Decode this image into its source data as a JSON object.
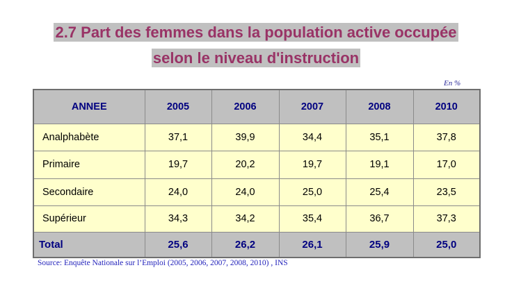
{
  "title": {
    "line1": "2.7 Part des femmes dans la population active occupée",
    "line2": "selon le niveau d'instruction"
  },
  "unit": "En %",
  "table": {
    "headers": [
      "ANNEE",
      "2005",
      "2006",
      "2007",
      "2008",
      "2010"
    ],
    "rows": [
      {
        "label": "Analphabète",
        "values": [
          "37,1",
          "39,9",
          "34,4",
          "35,1",
          "37,8"
        ]
      },
      {
        "label": "Primaire",
        "values": [
          "19,7",
          "20,2",
          "19,7",
          "19,1",
          "17,0"
        ]
      },
      {
        "label": "Secondaire",
        "values": [
          "24,0",
          "24,0",
          "25,0",
          "25,4",
          "23,5"
        ]
      },
      {
        "label": "Supérieur",
        "values": [
          "34,3",
          "34,2",
          "35,4",
          "36,7",
          "37,3"
        ]
      }
    ],
    "total": {
      "label": "Total",
      "values": [
        "25,6",
        "26,2",
        "26,1",
        "25,9",
        "25,0"
      ]
    }
  },
  "source": "Source: Enquête Nationale sur l’Emploi (2005, 2006, 2007, 2008, 2010) , INS",
  "colors": {
    "title": "#993366",
    "highlight": "#c0c0c0",
    "header_bg": "#c0c0c0",
    "header_text": "#000080",
    "row_bg": "#ffffcc",
    "unit_text": "#2a2a9a",
    "source_text": "#2222bb"
  }
}
